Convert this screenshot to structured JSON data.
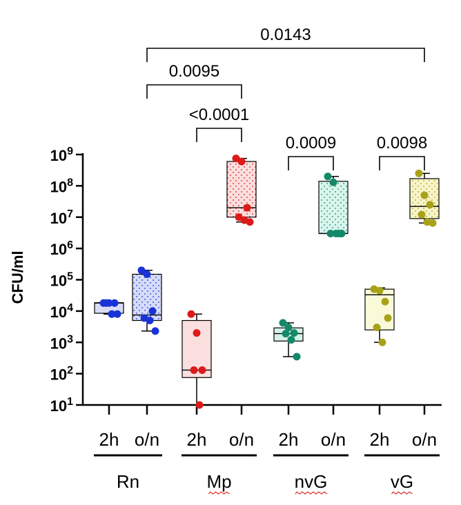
{
  "chart_data": {
    "type": "box",
    "ylabel": "CFU/ml",
    "yscale": "log10",
    "ylim_exponents": [
      1,
      9
    ],
    "y_tick_base": "10",
    "y_tick_exponents": [
      "1",
      "2",
      "3",
      "4",
      "5",
      "6",
      "7",
      "8",
      "9"
    ],
    "groups": [
      {
        "label": "Rn",
        "spellcheck_underline": false
      },
      {
        "label": "Mp",
        "spellcheck_underline": true
      },
      {
        "label": "nvG",
        "spellcheck_underline": true
      },
      {
        "label": "vG",
        "spellcheck_underline": true
      }
    ],
    "boxes": [
      {
        "group": "Rn",
        "time": "2h",
        "color": "#1a33d6",
        "fill": "#d9dcf6",
        "pattern": false,
        "min": 8000,
        "q1": 8500,
        "median": 18000,
        "q3": 18500,
        "max": 19000,
        "points": [
          18000,
          18000,
          18000,
          18000,
          8000,
          8000
        ]
      },
      {
        "group": "Rn",
        "time": "o/n",
        "color": "#1a33d6",
        "fill": "#d6dcf8",
        "pattern": true,
        "min": 2300,
        "q1": 5000,
        "median": 7500,
        "q3": 150000,
        "max": 200000,
        "points": [
          200000,
          150000,
          10000,
          6000,
          5000,
          2300
        ]
      },
      {
        "group": "Mp",
        "time": "2h",
        "color": "#dd1a1a",
        "fill": "#fbdede",
        "pattern": false,
        "min": 10,
        "q1": 75,
        "median": 130,
        "q3": 5000,
        "max": 8000,
        "points": [
          8000,
          2000,
          130,
          130,
          10
        ]
      },
      {
        "group": "Mp",
        "time": "o/n",
        "color": "#dd1a1a",
        "fill": "#fbdede",
        "pattern": true,
        "min": 7000000,
        "q1": 10000000,
        "median": 20000000,
        "q3": 600000000,
        "max": 750000000,
        "points": [
          750000000,
          600000000,
          20000000,
          10000000,
          8000000,
          7000000
        ]
      },
      {
        "group": "nvG",
        "time": "2h",
        "color": "#14896a",
        "fill": "#d6f1e7",
        "pattern": false,
        "min": 350,
        "q1": 1100,
        "median": 1900,
        "q3": 2900,
        "max": 4200,
        "points": [
          4200,
          3000,
          2000,
          1900,
          1200,
          350
        ]
      },
      {
        "group": "nvG",
        "time": "o/n",
        "color": "#14896a",
        "fill": "#d9f5ec",
        "pattern": true,
        "min": 3000000,
        "q1": 3000000,
        "median": 3000000,
        "q3": 140000000,
        "max": 200000000,
        "points": [
          200000000,
          130000000,
          3000000,
          3000000,
          3000000,
          3000000
        ]
      },
      {
        "group": "vG",
        "time": "2h",
        "color": "#a8a21a",
        "fill": "#fafad9",
        "pattern": false,
        "min": 1000,
        "q1": 2500,
        "median": 33000,
        "q3": 50000,
        "max": 55000,
        "points": [
          50000,
          45000,
          20000,
          3000,
          1000,
          6000
        ]
      },
      {
        "group": "vG",
        "time": "o/n",
        "color": "#a8a21a",
        "fill": "#f7f4c8",
        "pattern": true,
        "min": 6500000,
        "q1": 9000000,
        "median": 22000000,
        "q3": 170000000,
        "max": 250000000,
        "points": [
          250000000,
          50000000,
          25000000,
          12000000,
          7000000,
          6500000
        ]
      }
    ],
    "comparisons": [
      {
        "from_box": 1,
        "to_box": 7,
        "p": "0.0143"
      },
      {
        "from_box": 1,
        "to_box": 3,
        "p": "0.0095"
      },
      {
        "from_box": 2,
        "to_box": 3,
        "p": "<0.0001"
      },
      {
        "from_box": 4,
        "to_box": 5,
        "p": "0.0009"
      },
      {
        "from_box": 6,
        "to_box": 7,
        "p": "0.0098"
      }
    ]
  }
}
